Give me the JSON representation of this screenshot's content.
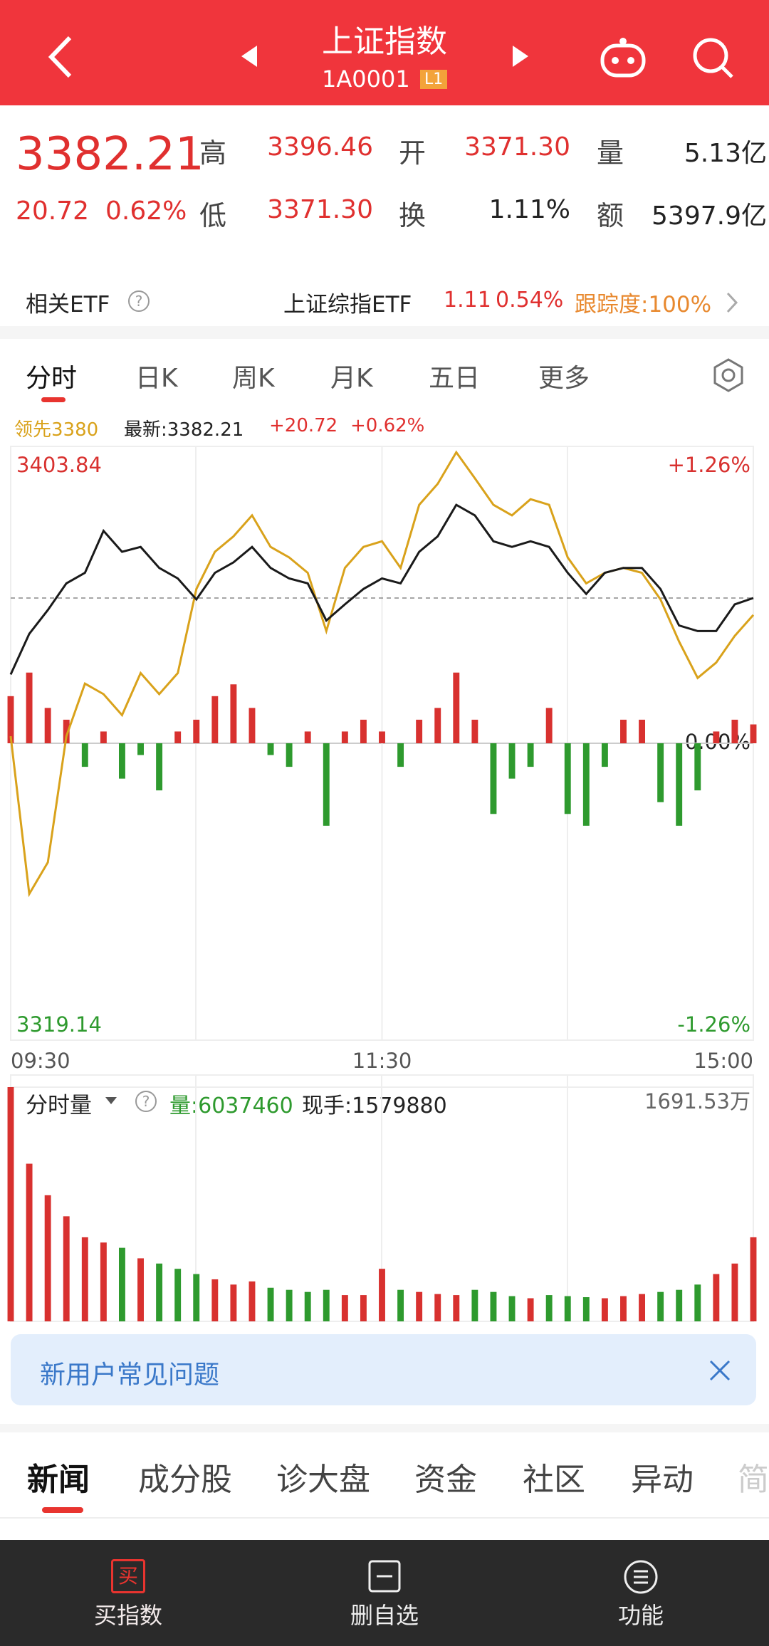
{
  "header": {
    "title": "上证指数",
    "code": "1A0001",
    "level": "L1"
  },
  "quote": {
    "price": "3382.21",
    "change": "20.72",
    "change_pct": "0.62%",
    "fields": [
      {
        "label": "高",
        "value": "3396.46"
      },
      {
        "label": "开",
        "value": "3371.30"
      },
      {
        "label": "量",
        "value": "5.13亿"
      },
      {
        "label": "低",
        "value": "3371.30"
      },
      {
        "label": "换",
        "value": "1.11%"
      },
      {
        "label": "额",
        "value": "5397.9亿"
      }
    ]
  },
  "etf": {
    "label": "相关ETF",
    "name": "上证综指ETF",
    "price": "1.11",
    "change": "0.54%",
    "tracking": "跟踪度:100%"
  },
  "period_tabs": [
    "分时",
    "日K",
    "周K",
    "月K",
    "五日",
    "更多"
  ],
  "chart_data": {
    "type": "line",
    "legend": {
      "change": "+20.72",
      "change_pct": "+0.62%"
    },
    "x": [
      0,
      6,
      12,
      18,
      24,
      30,
      36,
      42,
      48,
      54,
      60,
      66,
      72,
      78,
      84,
      90,
      96,
      102,
      108,
      114,
      120,
      126,
      132,
      138,
      144,
      150,
      156,
      162,
      168,
      174,
      180,
      186,
      192,
      198,
      204,
      210,
      216,
      222,
      228,
      234,
      240
    ],
    "xlim": [
      0,
      240
    ],
    "xticks": [
      {
        "value": 0,
        "label": "09:30"
      },
      {
        "value": 120,
        "label": "11:30"
      },
      {
        "value": 240,
        "label": "15:00"
      }
    ],
    "ylim": [
      3319.14,
      3403.84
    ],
    "yticks": [
      3319.14,
      3403.84
    ],
    "y2lim": [
      -1.26,
      1.26
    ],
    "y2ticks": [
      {
        "value": -1.26,
        "label": "-1.26%"
      },
      {
        "value": 0,
        "label": "0.00%"
      },
      {
        "value": 1.26,
        "label": "+1.26%"
      }
    ],
    "series": [
      {
        "name": "领先3380",
        "color": "#d9a21b",
        "values": [
          3362.5,
          3340.0,
          3344.5,
          3362.5,
          3370.0,
          3368.5,
          3365.5,
          3371.5,
          3368.5,
          3371.5,
          3383.5,
          3388.8,
          3391.0,
          3394.0,
          3389.5,
          3388.0,
          3385.8,
          3377.5,
          3386.5,
          3389.5,
          3390.3,
          3386.5,
          3395.5,
          3398.5,
          3403.0,
          3399.3,
          3395.5,
          3394.0,
          3396.3,
          3395.5,
          3388.0,
          3384.3,
          3385.8,
          3386.5,
          3385.8,
          3382.0,
          3376.0,
          3370.8,
          3373.0,
          3376.8,
          3379.8
        ]
      },
      {
        "name": "最新:3382.21",
        "color": "#1a1a1a",
        "values": [
          3371.3,
          3377.1,
          3380.5,
          3384.3,
          3385.8,
          3391.8,
          3388.8,
          3389.5,
          3386.5,
          3385.0,
          3382.0,
          3385.8,
          3387.3,
          3389.5,
          3386.5,
          3385.0,
          3384.3,
          3379.0,
          3381.3,
          3383.5,
          3385.0,
          3384.3,
          3388.8,
          3391.0,
          3395.5,
          3394.0,
          3390.3,
          3389.5,
          3390.3,
          3389.5,
          3385.8,
          3382.8,
          3385.8,
          3386.5,
          3386.5,
          3383.5,
          3378.3,
          3377.5,
          3377.5,
          3381.3,
          3382.21
        ]
      }
    ],
    "bars": {
      "axis": "y2",
      "up_color": "#d8312f",
      "down_color": "#2e9a2e",
      "values": [
        0.2,
        0.3,
        0.15,
        0.1,
        -0.1,
        0.05,
        -0.15,
        -0.05,
        -0.2,
        0.05,
        0.1,
        0.2,
        0.25,
        0.15,
        -0.05,
        -0.1,
        0.05,
        -0.35,
        0.05,
        0.1,
        0.05,
        -0.1,
        0.1,
        0.15,
        0.3,
        0.1,
        -0.3,
        -0.15,
        -0.1,
        0.15,
        -0.3,
        -0.35,
        -0.1,
        0.1,
        0.1,
        -0.25,
        -0.35,
        -0.2,
        0.05,
        0.1,
        0.08
      ]
    }
  },
  "volume_chart": {
    "type": "bar",
    "title": "分时量",
    "volume": "量:6037460",
    "current": "现手:1579880",
    "ylim": [
      0,
      1691.53
    ],
    "yticks": [
      {
        "value": 1691.53,
        "label": "1691.53万"
      }
    ],
    "values": [
      1691.53,
      1138.5,
      910.8,
      759,
      607.2,
      569.3,
      531.3,
      455.4,
      417.5,
      379.5,
      341.6,
      303.6,
      265.7,
      288.4,
      242.9,
      227.7,
      212.5,
      227.7,
      189.8,
      189.8,
      379.5,
      227.7,
      212.5,
      197.3,
      189.8,
      227.7,
      212.5,
      182.2,
      167,
      189.8,
      182.2,
      174.6,
      167,
      182.2,
      197.3,
      212.5,
      227.7,
      265.7,
      341.6,
      417.5,
      607.2
    ]
  },
  "banner": {
    "text": "新用户常见问题"
  },
  "news_tabs": [
    "新闻",
    "成分股",
    "诊大盘",
    "资金",
    "社区",
    "异动",
    "简"
  ],
  "bottom_nav": [
    {
      "icon": "买",
      "label": "买指数"
    },
    {
      "label": "删自选"
    },
    {
      "label": "功能"
    }
  ]
}
